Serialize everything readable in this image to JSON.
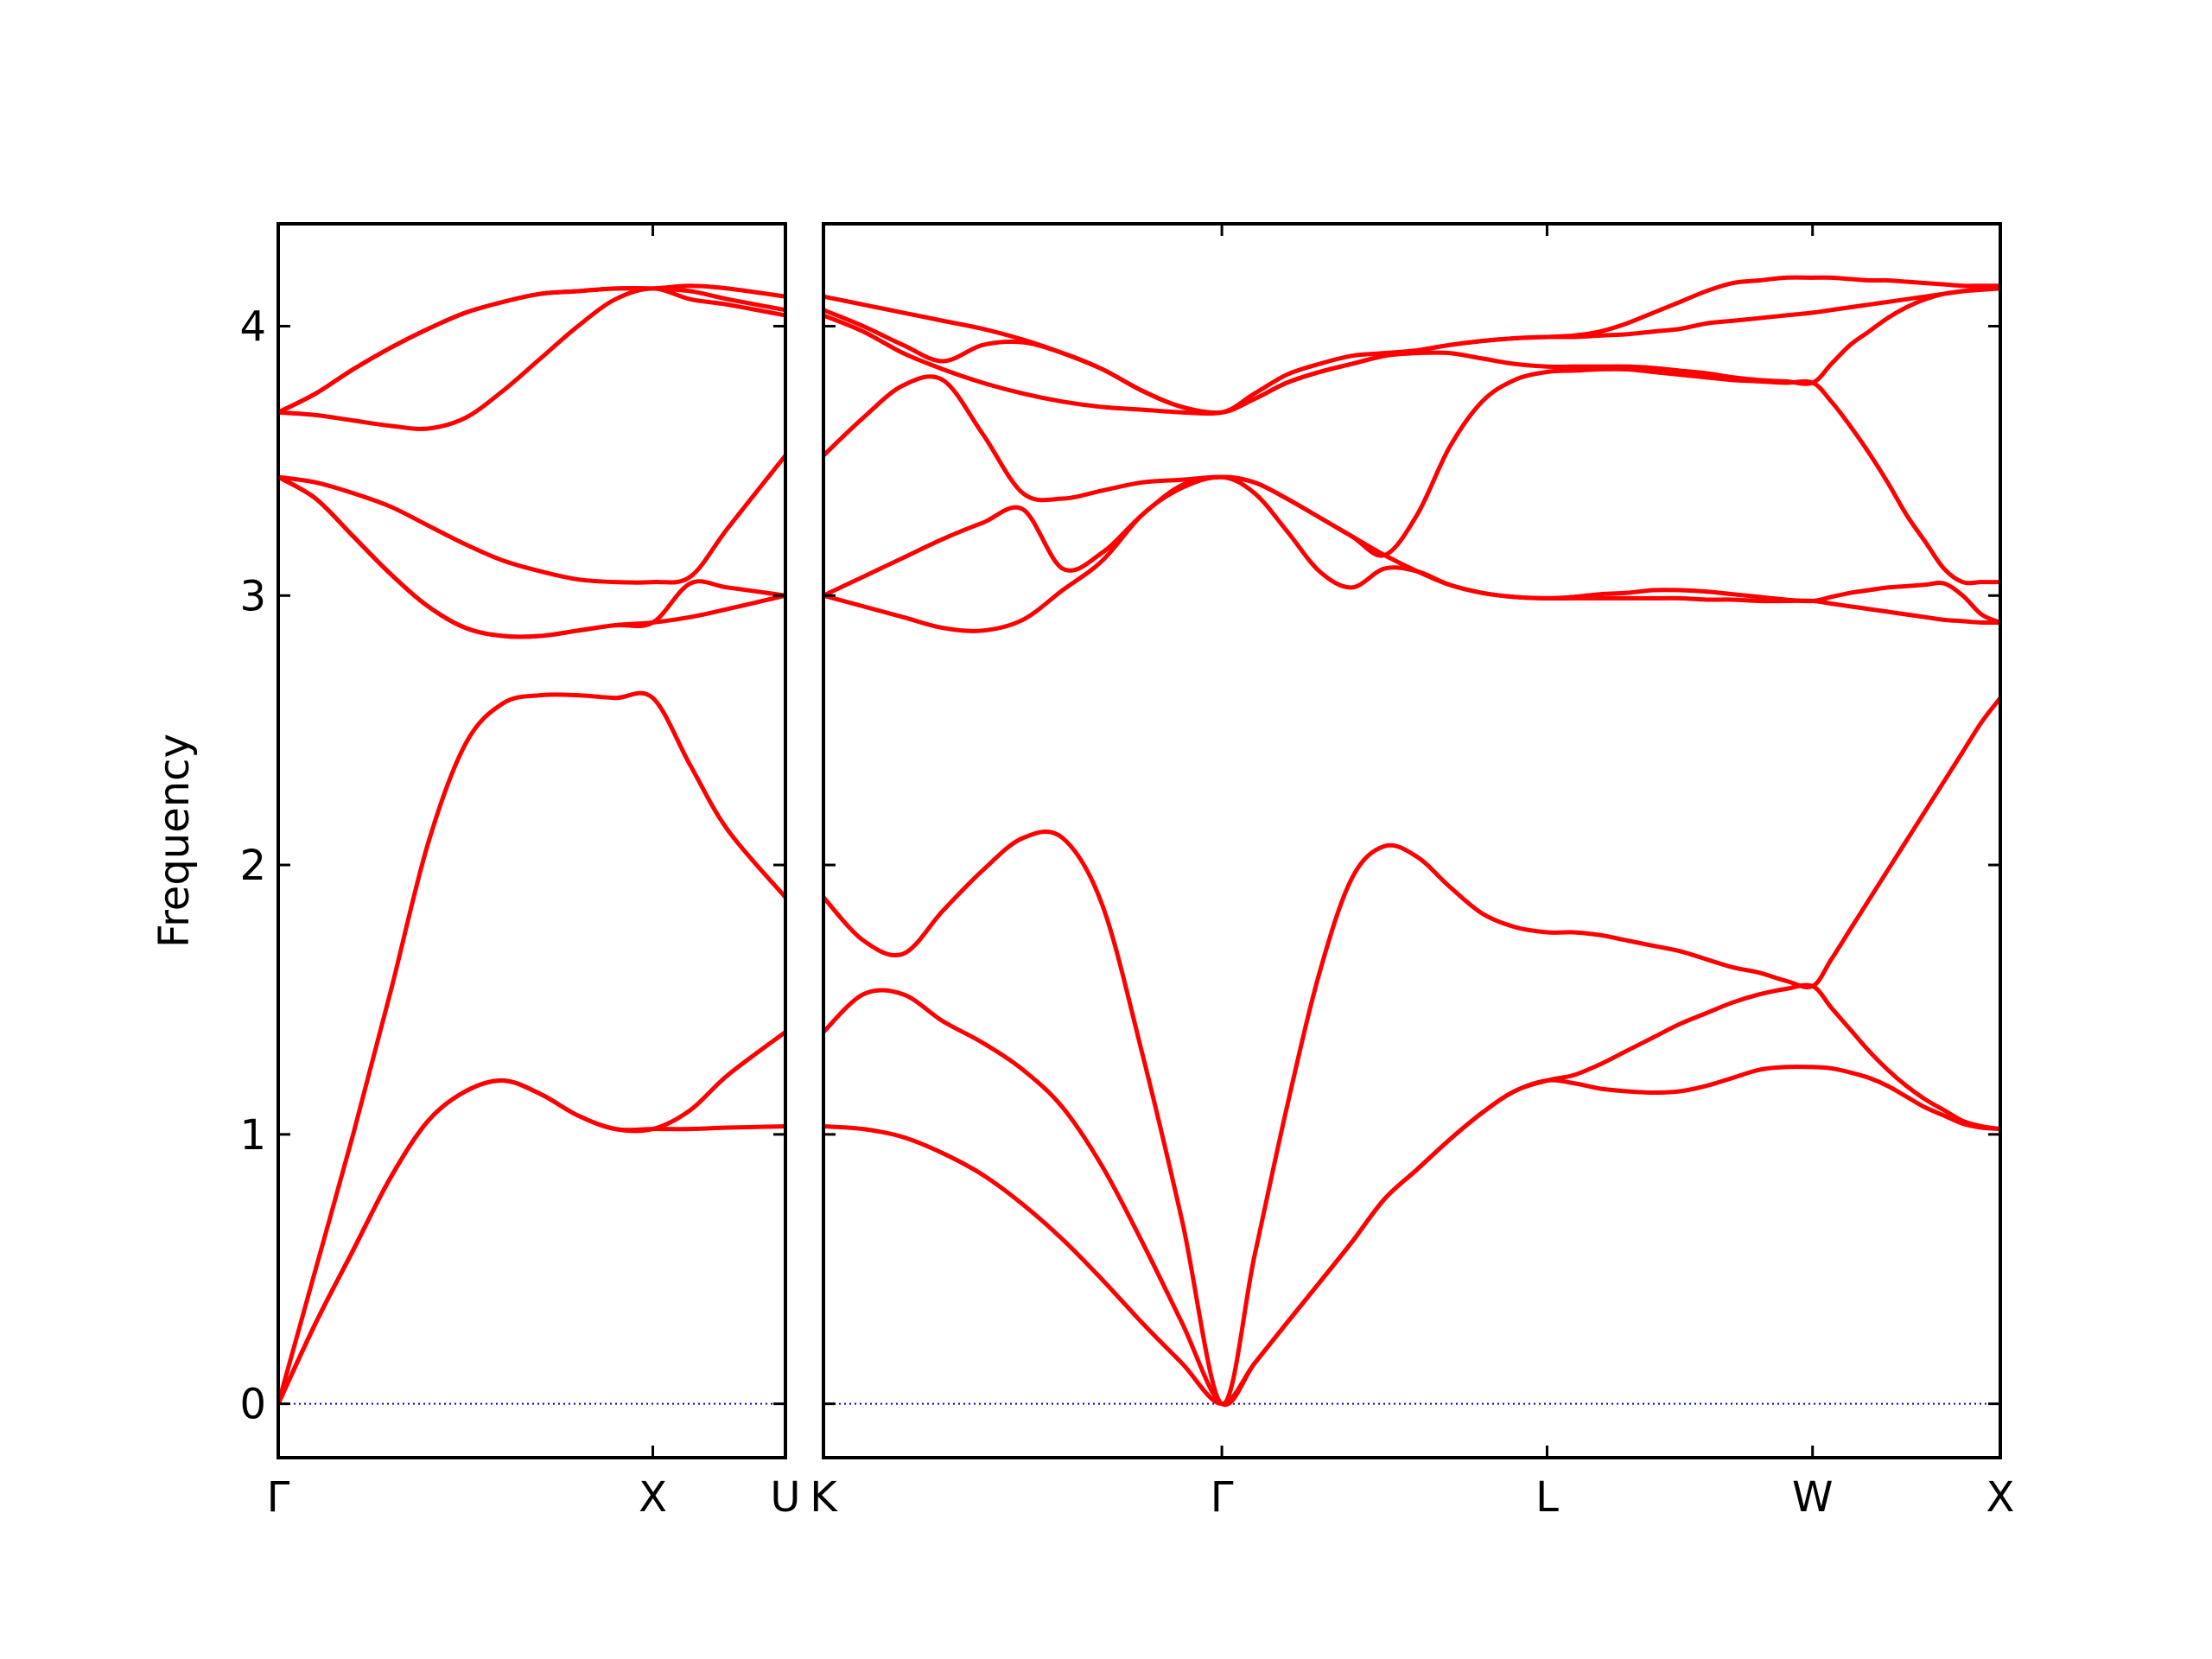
{
  "chart_data": [
    {
      "type": "line",
      "ylabel": "Frequency",
      "xlim": [
        0,
        1.354
      ],
      "ylim": [
        -0.2,
        4.38
      ],
      "xticks": [
        {
          "value": 0,
          "label": "Γ"
        },
        {
          "value": 1,
          "label": "X"
        },
        {
          "value": 1.354,
          "label": "U"
        }
      ],
      "yticks": [
        0,
        1,
        2,
        3,
        4
      ],
      "ytick_labels": true,
      "hline": 0,
      "hline_color": "#0000cc",
      "x": [
        0,
        0.1,
        0.2,
        0.3,
        0.4,
        0.5,
        0.6,
        0.7,
        0.8,
        0.9,
        1.0,
        1.1,
        1.2,
        1.354
      ],
      "series": [
        {
          "color": "#ff0000",
          "values": [
            0,
            0.3,
            0.57,
            0.84,
            1.05,
            1.16,
            1.2,
            1.15,
            1.07,
            1.02,
            1.02,
            1.02,
            1.025,
            1.03
          ]
        },
        {
          "color": "#ff0000",
          "values": [
            0,
            0.3,
            0.57,
            0.84,
            1.05,
            1.16,
            1.2,
            1.15,
            1.07,
            1.02,
            1.02,
            1.09,
            1.22,
            1.38
          ]
        },
        {
          "color": "#ff0000",
          "values": [
            0,
            0.5,
            1.0,
            1.53,
            2.08,
            2.45,
            2.6,
            2.63,
            2.63,
            2.62,
            2.62,
            2.37,
            2.13,
            1.88
          ]
        },
        {
          "color": "#ff0000",
          "values": [
            3.44,
            3.36,
            3.22,
            3.08,
            2.96,
            2.88,
            2.85,
            2.85,
            2.87,
            2.89,
            2.9,
            2.92,
            2.95,
            3.0
          ]
        },
        {
          "color": "#ff0000",
          "values": [
            3.44,
            3.36,
            3.22,
            3.08,
            2.96,
            2.88,
            2.85,
            2.85,
            2.87,
            2.89,
            2.9,
            3.045,
            3.03,
            3.0
          ]
        },
        {
          "color": "#ff0000",
          "values": [
            3.44,
            3.42,
            3.38,
            3.33,
            3.26,
            3.19,
            3.13,
            3.09,
            3.06,
            3.05,
            3.05,
            3.07,
            3.25,
            3.52
          ]
        },
        {
          "color": "#ff0000",
          "values": [
            3.68,
            3.67,
            3.65,
            3.63,
            3.62,
            3.66,
            3.76,
            3.88,
            4.0,
            4.1,
            4.14,
            4.1,
            4.08,
            4.04
          ]
        },
        {
          "color": "#ff0000",
          "values": [
            3.68,
            3.75,
            3.84,
            3.92,
            3.99,
            4.05,
            4.09,
            4.12,
            4.13,
            4.14,
            4.14,
            4.13,
            4.1,
            4.06
          ]
        },
        {
          "color": "#ff0000",
          "values": [
            3.68,
            3.75,
            3.84,
            3.92,
            3.99,
            4.05,
            4.09,
            4.12,
            4.13,
            4.14,
            4.14,
            4.15,
            4.14,
            4.11
          ]
        }
      ]
    },
    {
      "type": "line",
      "xlim": [
        1.354,
        4.488
      ],
      "ylim": [
        -0.2,
        4.38
      ],
      "xticks": [
        {
          "value": 1.354,
          "label": "K"
        },
        {
          "value": 2.415,
          "label": "Γ"
        },
        {
          "value": 3.281,
          "label": "L"
        },
        {
          "value": 3.988,
          "label": "W"
        },
        {
          "value": 4.488,
          "label": "X"
        }
      ],
      "yticks": [
        0,
        1,
        2,
        3,
        4
      ],
      "ytick_labels": false,
      "hline": 0,
      "hline_color": "#0000cc",
      "x": [
        1.354,
        1.46,
        1.566,
        1.672,
        1.778,
        1.885,
        1.991,
        2.097,
        2.203,
        2.309,
        2.415,
        2.502,
        2.588,
        2.675,
        2.761,
        2.848,
        2.935,
        3.021,
        3.108,
        3.194,
        3.281,
        3.352,
        3.422,
        3.493,
        3.564,
        3.635,
        3.705,
        3.776,
        3.847,
        3.917,
        3.988,
        4.038,
        4.088,
        4.138,
        4.188,
        4.238,
        4.288,
        4.338,
        4.388,
        4.438,
        4.488
      ],
      "series": [
        {
          "color": "#ff0000",
          "values": [
            1.03,
            1.02,
            0.99,
            0.93,
            0.85,
            0.74,
            0.61,
            0.46,
            0.3,
            0.15,
            0,
            0.15,
            0.3,
            0.45,
            0.6,
            0.76,
            0.87,
            0.98,
            1.08,
            1.16,
            1.2,
            1.19,
            1.17,
            1.16,
            1.155,
            1.16,
            1.18,
            1.21,
            1.24,
            1.25,
            1.25,
            1.245,
            1.23,
            1.21,
            1.18,
            1.14,
            1.1,
            1.07,
            1.04,
            1.025,
            1.02
          ]
        },
        {
          "color": "#ff0000",
          "values": [
            1.38,
            1.52,
            1.52,
            1.42,
            1.34,
            1.24,
            1.1,
            0.88,
            0.6,
            0.3,
            0,
            0.15,
            0.3,
            0.45,
            0.6,
            0.76,
            0.87,
            0.98,
            1.08,
            1.16,
            1.2,
            1.22,
            1.26,
            1.31,
            1.36,
            1.41,
            1.45,
            1.49,
            1.52,
            1.54,
            1.55,
            1.47,
            1.39,
            1.31,
            1.24,
            1.18,
            1.13,
            1.09,
            1.05,
            1.03,
            1.02
          ]
        },
        {
          "color": "#ff0000",
          "values": [
            1.88,
            1.72,
            1.67,
            1.83,
            1.98,
            2.1,
            2.1,
            1.85,
            1.3,
            0.68,
            0,
            0.55,
            1.1,
            1.6,
            1.95,
            2.07,
            2.03,
            1.92,
            1.82,
            1.77,
            1.75,
            1.75,
            1.74,
            1.72,
            1.7,
            1.68,
            1.65,
            1.62,
            1.6,
            1.57,
            1.55,
            1.65,
            1.76,
            1.87,
            1.98,
            2.09,
            2.2,
            2.31,
            2.42,
            2.53,
            2.62
          ]
        },
        {
          "color": "#ff0000",
          "values": [
            3.0,
            2.96,
            2.92,
            2.88,
            2.87,
            2.91,
            3.02,
            3.13,
            3.3,
            3.4,
            3.44,
            3.38,
            3.24,
            3.09,
            3.03,
            3.1,
            3.09,
            3.04,
            3.01,
            2.995,
            2.99,
            2.99,
            2.99,
            2.99,
            2.99,
            2.99,
            2.985,
            2.985,
            2.98,
            2.98,
            2.98,
            2.97,
            2.96,
            2.95,
            2.94,
            2.93,
            2.92,
            2.91,
            2.905,
            2.9,
            2.9
          ]
        },
        {
          "color": "#ff0000",
          "values": [
            3.0,
            3.07,
            3.14,
            3.21,
            3.27,
            3.32,
            3.1,
            3.16,
            3.3,
            3.41,
            3.44,
            3.42,
            3.36,
            3.29,
            3.22,
            3.15,
            3.09,
            3.04,
            3.01,
            2.995,
            2.99,
            2.995,
            3.005,
            3.01,
            3.02,
            3.02,
            3.015,
            3.005,
            2.995,
            2.985,
            2.98,
            2.995,
            3.01,
            3.02,
            3.03,
            3.035,
            3.04,
            3.045,
            3.0,
            2.93,
            2.9
          ]
        },
        {
          "color": "#ff0000",
          "values": [
            3.52,
            3.66,
            3.78,
            3.8,
            3.6,
            3.38,
            3.36,
            3.39,
            3.42,
            3.43,
            3.44,
            3.42,
            3.36,
            3.29,
            3.22,
            3.15,
            3.3,
            3.55,
            3.72,
            3.8,
            3.83,
            3.835,
            3.84,
            3.84,
            3.83,
            3.82,
            3.81,
            3.8,
            3.795,
            3.79,
            3.79,
            3.72,
            3.63,
            3.53,
            3.42,
            3.3,
            3.2,
            3.1,
            3.05,
            3.05,
            3.05
          ]
        },
        {
          "color": "#ff0000",
          "values": [
            4.04,
            3.98,
            3.9,
            3.84,
            3.79,
            3.75,
            3.72,
            3.7,
            3.69,
            3.68,
            3.68,
            3.73,
            3.79,
            3.83,
            3.86,
            3.89,
            3.9,
            3.9,
            3.88,
            3.86,
            3.85,
            3.85,
            3.85,
            3.85,
            3.845,
            3.835,
            3.825,
            3.81,
            3.8,
            3.795,
            3.79,
            3.86,
            3.93,
            3.98,
            4.03,
            4.07,
            4.1,
            4.12,
            4.13,
            4.135,
            4.14
          ]
        },
        {
          "color": "#ff0000",
          "values": [
            4.06,
            4.0,
            3.93,
            3.87,
            3.93,
            3.94,
            3.9,
            3.84,
            3.76,
            3.7,
            3.68,
            3.73,
            3.79,
            3.83,
            3.86,
            3.89,
            3.91,
            3.93,
            3.945,
            3.955,
            3.96,
            3.96,
            3.965,
            3.97,
            3.98,
            3.99,
            4.01,
            4.02,
            4.03,
            4.04,
            4.05,
            4.06,
            4.07,
            4.08,
            4.09,
            4.1,
            4.11,
            4.12,
            4.13,
            4.14,
            4.14
          ]
        },
        {
          "color": "#ff0000",
          "values": [
            4.11,
            4.08,
            4.05,
            4.02,
            3.99,
            3.95,
            3.9,
            3.84,
            3.76,
            3.7,
            3.68,
            3.75,
            3.82,
            3.86,
            3.89,
            3.9,
            3.91,
            3.93,
            3.945,
            3.955,
            3.96,
            3.965,
            3.98,
            4.01,
            4.05,
            4.09,
            4.13,
            4.16,
            4.17,
            4.18,
            4.18,
            4.18,
            4.175,
            4.17,
            4.17,
            4.165,
            4.16,
            4.155,
            4.15,
            4.15,
            4.15
          ]
        }
      ]
    }
  ]
}
